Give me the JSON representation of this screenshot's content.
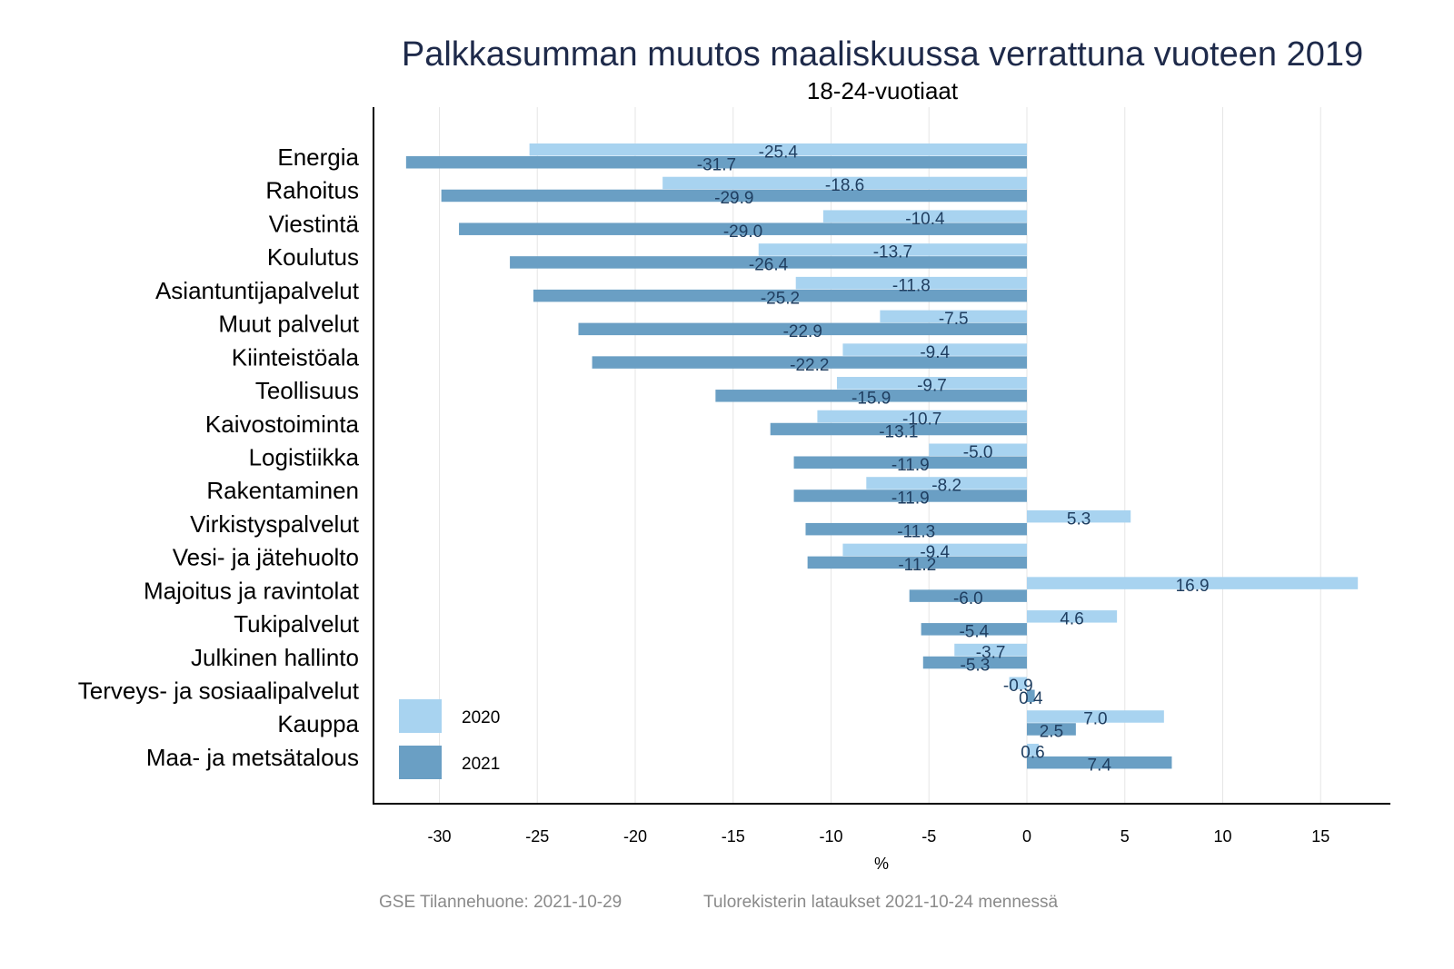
{
  "chart_data": {
    "type": "bar",
    "orientation": "horizontal",
    "title": "Palkkasumman muutos maaliskuussa verrattuna vuoteen 2019",
    "subtitle": "18-24-vuotiaat",
    "xlabel": "%",
    "ylabel": "",
    "xlim": [
      -33.4,
      18.6
    ],
    "xticks": [
      -30,
      -25,
      -20,
      -15,
      -10,
      -5,
      0,
      5,
      10,
      15
    ],
    "grid": true,
    "legend_position": "bottom-left",
    "categories": [
      "Energia",
      "Rahoitus",
      "Viestintä",
      "Koulutus",
      "Asiantuntijapalvelut",
      "Muut palvelut",
      "Kiinteistöala",
      "Teollisuus",
      "Kaivostoiminta",
      "Logistiikka",
      "Rakentaminen",
      "Virkistyspalvelut",
      "Vesi- ja jätehuolto",
      "Majoitus ja ravintolat",
      "Tukipalvelut",
      "Julkinen hallinto",
      "Terveys- ja sosiaalipalvelut",
      "Kauppa",
      "Maa- ja metsätalous"
    ],
    "series": [
      {
        "name": "2020",
        "color": "#a8d3f0",
        "values": [
          -25.4,
          -18.6,
          -10.4,
          -13.7,
          -11.8,
          -7.5,
          -9.4,
          -9.7,
          -10.7,
          -5.0,
          -8.2,
          5.3,
          -9.4,
          16.9,
          4.6,
          -3.7,
          -0.9,
          7.0,
          0.6
        ]
      },
      {
        "name": "2021",
        "color": "#6a9fc4",
        "values": [
          -31.7,
          -29.9,
          -29.0,
          -26.4,
          -25.2,
          -22.9,
          -22.2,
          -15.9,
          -13.1,
          -11.9,
          -11.9,
          -11.3,
          -11.2,
          -6.0,
          -5.4,
          -5.3,
          0.4,
          2.5,
          7.4
        ]
      }
    ]
  },
  "footer": {
    "source": "GSE Tilannehuone: 2021-10-29",
    "note": "Tulorekisterin lataukset 2021-10-24 mennessä"
  }
}
